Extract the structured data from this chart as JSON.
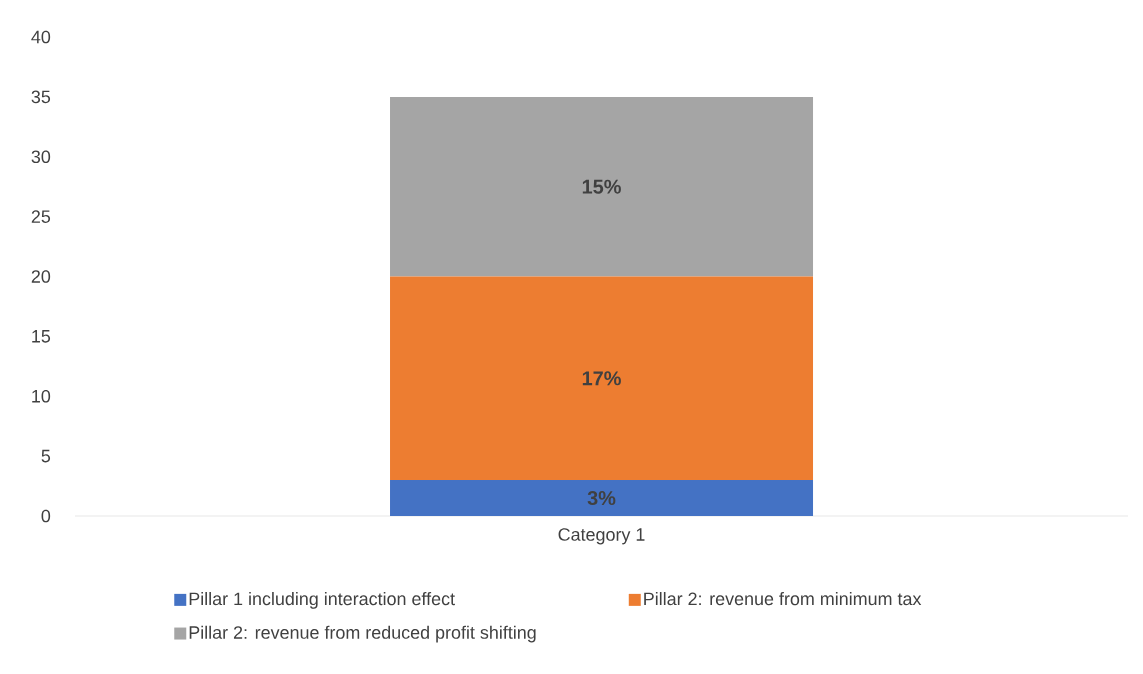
{
  "chart_data": {
    "type": "bar",
    "stacked": true,
    "categories": [
      "Category 1"
    ],
    "series": [
      {
        "name": "Pillar 1 including interaction effect",
        "color": "#4472c4",
        "values": [
          3
        ],
        "value_labels": [
          "3%"
        ]
      },
      {
        "name": "Pillar 2: revenue from minimum tax",
        "color": "#ed7d31",
        "values": [
          17
        ],
        "value_labels": [
          "17%"
        ]
      },
      {
        "name": "Pillar 2: revenue from reduced profit shifting",
        "color": "#a5a5a5",
        "values": [
          15
        ],
        "value_labels": [
          "15%"
        ]
      }
    ],
    "ylim": [
      0,
      40
    ],
    "yticks": [
      0,
      5,
      10,
      15,
      20,
      25,
      30,
      35,
      40
    ],
    "legend": "bottom"
  }
}
